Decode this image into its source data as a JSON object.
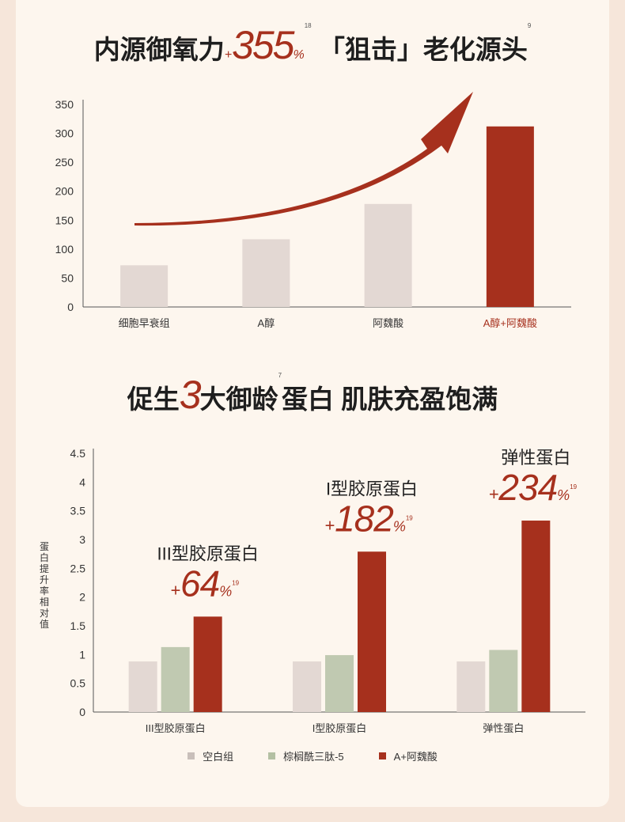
{
  "headline1": {
    "part1": "内源御氧力",
    "plus": "+",
    "value": "355",
    "pct": "%",
    "sup": "18",
    "bracket_open": "「",
    "bracket_word": "狙击",
    "bracket_close": "」",
    "part2": "老化源头",
    "sup2": "9"
  },
  "headline2": {
    "part1": "促生",
    "num": "3",
    "part2": "大御龄",
    "sup": "7",
    "part3": "蛋白 肌肤充盈饱满"
  },
  "colors": {
    "accent": "#a6301d",
    "bar_gray": "#e3d8d3",
    "bar_green": "#c0c9b1",
    "axis": "#555555"
  },
  "chart_data": [
    {
      "type": "bar",
      "categories": [
        "细胞早衰组",
        "A醇",
        "阿魏酸",
        "A醇+阿魏酸"
      ],
      "values": [
        72,
        117,
        178,
        312
      ],
      "highlight_index": 3,
      "ylim": [
        0,
        350
      ],
      "yticks": [
        0,
        50,
        100,
        150,
        200,
        250,
        300,
        350
      ],
      "grid": false,
      "annotation": "upward curved arrow"
    },
    {
      "type": "bar",
      "categories": [
        "III型胶原蛋白",
        "I型胶原蛋白",
        "弹性蛋白"
      ],
      "series": [
        {
          "name": "空白组",
          "values": [
            0.88,
            0.88,
            0.88
          ]
        },
        {
          "name": "棕榈酰三肽-5",
          "values": [
            1.13,
            0.99,
            1.08
          ]
        },
        {
          "name": "A+阿魏酸",
          "values": [
            1.66,
            2.79,
            3.33
          ]
        }
      ],
      "ylabel": "蛋白提升率相对值",
      "ylim": [
        0,
        4.5
      ],
      "yticks": [
        0,
        0.5,
        1,
        1.5,
        2,
        2.5,
        3,
        3.5,
        4,
        4.5
      ],
      "yticklabels": [
        "0",
        "0.5",
        "1",
        "1.5",
        "2",
        "2.5",
        "3",
        "3.5",
        "4",
        "4.5"
      ],
      "grid": false,
      "legend_position": "bottom",
      "annotations": [
        {
          "label": "III型胶原蛋白",
          "plus": "+",
          "value": "64",
          "pct": "%",
          "sup": "19"
        },
        {
          "label": "I型胶原蛋白",
          "plus": "+",
          "value": "182",
          "pct": "%",
          "sup": "19"
        },
        {
          "label": "弹性蛋白",
          "plus": "+",
          "value": "234",
          "pct": "%",
          "sup": "19"
        }
      ]
    }
  ]
}
